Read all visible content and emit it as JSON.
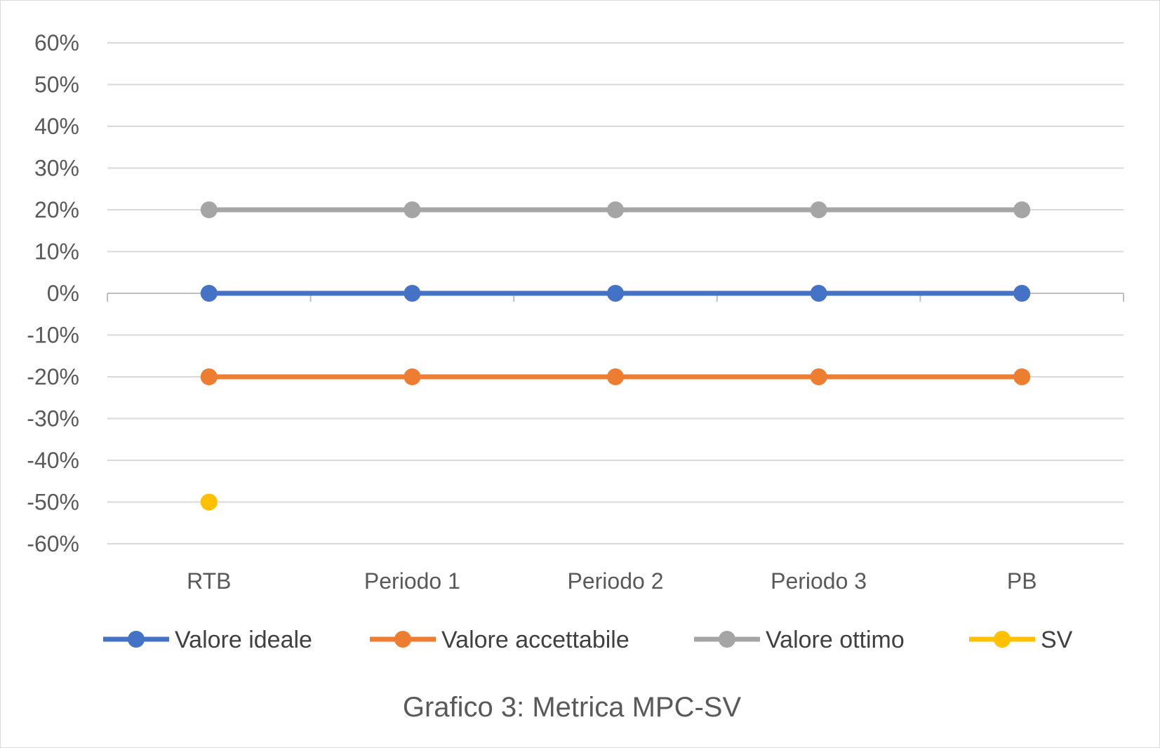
{
  "chart_data": {
    "type": "line",
    "title": "",
    "caption": "Grafico 3: Metrica MPC-SV",
    "xlabel": "",
    "ylabel": "",
    "categories": [
      "RTB",
      "Periodo 1",
      "Periodo 2",
      "Periodo 3",
      "PB"
    ],
    "ylim": [
      -60,
      60
    ],
    "ytick_step": 10,
    "ytick_suffix": "%",
    "grid": true,
    "legend_position": "bottom",
    "series": [
      {
        "name": "Valore ideale",
        "color": "#4472c4",
        "values": [
          0,
          0,
          0,
          0,
          0
        ]
      },
      {
        "name": "Valore accettabile",
        "color": "#ed7d31",
        "values": [
          -20,
          -20,
          -20,
          -20,
          -20
        ]
      },
      {
        "name": "Valore ottimo",
        "color": "#a5a5a5",
        "values": [
          20,
          20,
          20,
          20,
          20
        ]
      },
      {
        "name": "SV",
        "color": "#ffc000",
        "values": [
          -50,
          null,
          null,
          null,
          null
        ]
      }
    ]
  }
}
